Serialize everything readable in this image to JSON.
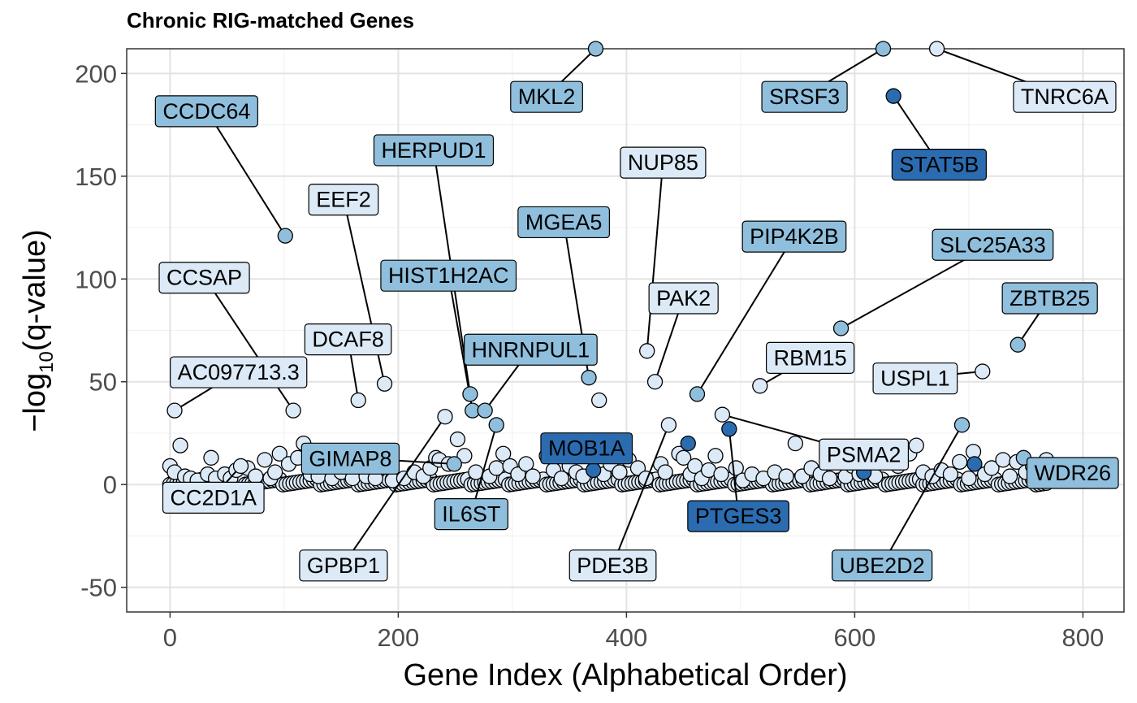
{
  "chart_data": {
    "type": "scatter",
    "title": "Chronic RIG-matched Genes",
    "xlabel": "Gene Index (Alphabetical Order)",
    "ylabel": "−log10(q-value)",
    "ylabel_main": "−log",
    "ylabel_sub": "10",
    "ylabel_tail": "(q-value)",
    "xlim": [
      -38,
      836
    ],
    "ylim": [
      -62,
      212
    ],
    "x_ticks": [
      0,
      200,
      400,
      600,
      800
    ],
    "y_ticks": [
      -50,
      0,
      50,
      100,
      150,
      200
    ],
    "grid": true,
    "colors": {
      "light": "#dce9f6",
      "mid": "#8fbfdc",
      "dark": "#2b6cb0"
    },
    "labeled_points": [
      {
        "label": "AC097713.3",
        "x": 4,
        "y": 36,
        "color": "light",
        "lx": 60,
        "ly": 55
      },
      {
        "label": "CC2D1A",
        "x": 62,
        "y": 9,
        "color": "light",
        "lx": 38,
        "ly": -6
      },
      {
        "label": "CCDC64",
        "x": 101,
        "y": 121,
        "color": "mid",
        "lx": 32,
        "ly": 182
      },
      {
        "label": "CCSAP",
        "x": 108,
        "y": 36,
        "color": "light",
        "lx": 30,
        "ly": 101
      },
      {
        "label": "DCAF8",
        "x": 165,
        "y": 41,
        "color": "light",
        "lx": 156,
        "ly": 71
      },
      {
        "label": "EEF2",
        "x": 188,
        "y": 49,
        "color": "light",
        "lx": 152,
        "ly": 139
      },
      {
        "label": "GIMAP8",
        "x": 249,
        "y": 10,
        "color": "mid",
        "lx": 158,
        "ly": 13
      },
      {
        "label": "GPBP1",
        "x": 241,
        "y": 33,
        "color": "light",
        "lx": 152,
        "ly": -39
      },
      {
        "label": "HERPUD1",
        "x": 263,
        "y": 44,
        "color": "mid",
        "lx": 231,
        "ly": 163
      },
      {
        "label": "HIST1H2AC",
        "x": 265,
        "y": 36,
        "color": "mid",
        "lx": 244,
        "ly": 102
      },
      {
        "label": "HNRNPUL1",
        "x": 276,
        "y": 36,
        "color": "mid",
        "lx": 316,
        "ly": 66
      },
      {
        "label": "IL6ST",
        "x": 286,
        "y": 29,
        "color": "mid",
        "lx": 264,
        "ly": -14
      },
      {
        "label": "MGEA5",
        "x": 367,
        "y": 52,
        "color": "mid",
        "lx": 345,
        "ly": 128
      },
      {
        "label": "MKL2",
        "x": 373,
        "y": 212,
        "color": "mid",
        "lx": 330,
        "ly": 189
      },
      {
        "label": "MOB1A",
        "x": 371,
        "y": 7,
        "color": "dark",
        "lx": 365,
        "ly": 18
      },
      {
        "label": "NUP85",
        "x": 418,
        "y": 65,
        "color": "light",
        "lx": 432,
        "ly": 157
      },
      {
        "label": "PAK2",
        "x": 425,
        "y": 50,
        "color": "light",
        "lx": 450,
        "ly": 91
      },
      {
        "label": "PDE3B",
        "x": 437,
        "y": 29,
        "color": "light",
        "lx": 388,
        "ly": -39
      },
      {
        "label": "PIP4K2B",
        "x": 462,
        "y": 44,
        "color": "mid",
        "lx": 547,
        "ly": 121
      },
      {
        "label": "PSMA2",
        "x": 484,
        "y": 34,
        "color": "light",
        "lx": 608,
        "ly": 15
      },
      {
        "label": "PTGES3",
        "x": 490,
        "y": 27,
        "color": "dark",
        "lx": 498,
        "ly": -15
      },
      {
        "label": "RBM15",
        "x": 517,
        "y": 48,
        "color": "light",
        "lx": 561,
        "ly": 62
      },
      {
        "label": "SRSF3",
        "x": 625,
        "y": 212,
        "color": "mid",
        "lx": 556,
        "ly": 189
      },
      {
        "label": "SLC25A33",
        "x": 588,
        "y": 76,
        "color": "mid",
        "lx": 721,
        "ly": 117
      },
      {
        "label": "STAT5B",
        "x": 634,
        "y": 189,
        "color": "dark",
        "lx": 674,
        "ly": 156
      },
      {
        "label": "TNRC6A",
        "x": 672,
        "y": 212,
        "color": "light",
        "lx": 784,
        "ly": 189
      },
      {
        "label": "USPL1",
        "x": 712,
        "y": 55,
        "color": "light",
        "lx": 653,
        "ly": 52
      },
      {
        "label": "UBE2D2",
        "x": 694,
        "y": 29,
        "color": "mid",
        "lx": 624,
        "ly": -39
      },
      {
        "label": "ZBTB25",
        "x": 743,
        "y": 68,
        "color": "mid",
        "lx": 771,
        "ly": 91
      },
      {
        "label": "WDR26",
        "x": 748,
        "y": 13,
        "color": "mid",
        "lx": 791,
        "ly": 6
      }
    ],
    "unlabeled_points": [
      [
        0,
        9
      ],
      [
        4,
        6
      ],
      [
        9,
        19
      ],
      [
        13,
        4
      ],
      [
        18,
        3
      ],
      [
        24,
        2
      ],
      [
        33,
        5
      ],
      [
        36,
        13
      ],
      [
        40,
        3
      ],
      [
        48,
        5
      ],
      [
        53,
        3
      ],
      [
        58,
        7
      ],
      [
        68,
        8
      ],
      [
        75,
        4
      ],
      [
        83,
        12
      ],
      [
        88,
        3
      ],
      [
        92,
        6
      ],
      [
        96,
        15
      ],
      [
        104,
        10
      ],
      [
        112,
        13
      ],
      [
        117,
        20
      ],
      [
        123,
        5
      ],
      [
        130,
        4
      ],
      [
        142,
        3
      ],
      [
        150,
        6
      ],
      [
        160,
        3
      ],
      [
        172,
        4
      ],
      [
        180,
        3
      ],
      [
        195,
        2
      ],
      [
        205,
        3
      ],
      [
        214,
        6
      ],
      [
        222,
        4
      ],
      [
        228,
        8
      ],
      [
        233,
        13
      ],
      [
        236,
        12
      ],
      [
        244,
        10
      ],
      [
        252,
        22
      ],
      [
        258,
        14
      ],
      [
        268,
        6
      ],
      [
        280,
        4
      ],
      [
        286,
        8
      ],
      [
        292,
        15
      ],
      [
        298,
        9
      ],
      [
        305,
        5
      ],
      [
        312,
        10
      ],
      [
        318,
        4
      ],
      [
        330,
        14
      ],
      [
        336,
        7
      ],
      [
        343,
        3
      ],
      [
        350,
        9
      ],
      [
        356,
        6
      ],
      [
        362,
        4
      ],
      [
        376,
        41
      ],
      [
        380,
        5
      ],
      [
        386,
        10
      ],
      [
        394,
        6
      ],
      [
        402,
        12
      ],
      [
        410,
        8
      ],
      [
        417,
        3
      ],
      [
        430,
        10
      ],
      [
        434,
        6
      ],
      [
        446,
        15
      ],
      [
        450,
        13
      ],
      [
        456,
        5
      ],
      [
        460,
        9
      ],
      [
        466,
        3
      ],
      [
        472,
        7
      ],
      [
        478,
        14
      ],
      [
        483,
        5
      ],
      [
        496,
        8
      ],
      [
        502,
        2
      ],
      [
        510,
        5
      ],
      [
        520,
        3
      ],
      [
        530,
        6
      ],
      [
        540,
        4
      ],
      [
        548,
        20
      ],
      [
        554,
        4
      ],
      [
        562,
        8
      ],
      [
        570,
        5
      ],
      [
        578,
        3
      ],
      [
        592,
        4
      ],
      [
        598,
        9
      ],
      [
        604,
        5
      ],
      [
        612,
        6
      ],
      [
        618,
        4
      ],
      [
        628,
        13
      ],
      [
        638,
        9
      ],
      [
        648,
        15
      ],
      [
        654,
        19
      ],
      [
        660,
        6
      ],
      [
        668,
        4
      ],
      [
        676,
        7
      ],
      [
        684,
        5
      ],
      [
        692,
        11
      ],
      [
        700,
        3
      ],
      [
        704,
        16
      ],
      [
        714,
        5
      ],
      [
        720,
        8
      ],
      [
        730,
        12
      ],
      [
        736,
        4
      ],
      [
        742,
        11
      ],
      [
        750,
        6
      ],
      [
        756,
        9
      ],
      [
        762,
        3
      ],
      [
        768,
        12
      ],
      [
        770,
        2
      ]
    ],
    "colored_points": [
      {
        "x": 454,
        "y": 20,
        "color": "dark"
      },
      {
        "x": 608,
        "y": 6,
        "color": "dark"
      },
      {
        "x": 705,
        "y": 10,
        "color": "dark"
      }
    ],
    "baseline_count": 770,
    "baseline_y": 0
  }
}
